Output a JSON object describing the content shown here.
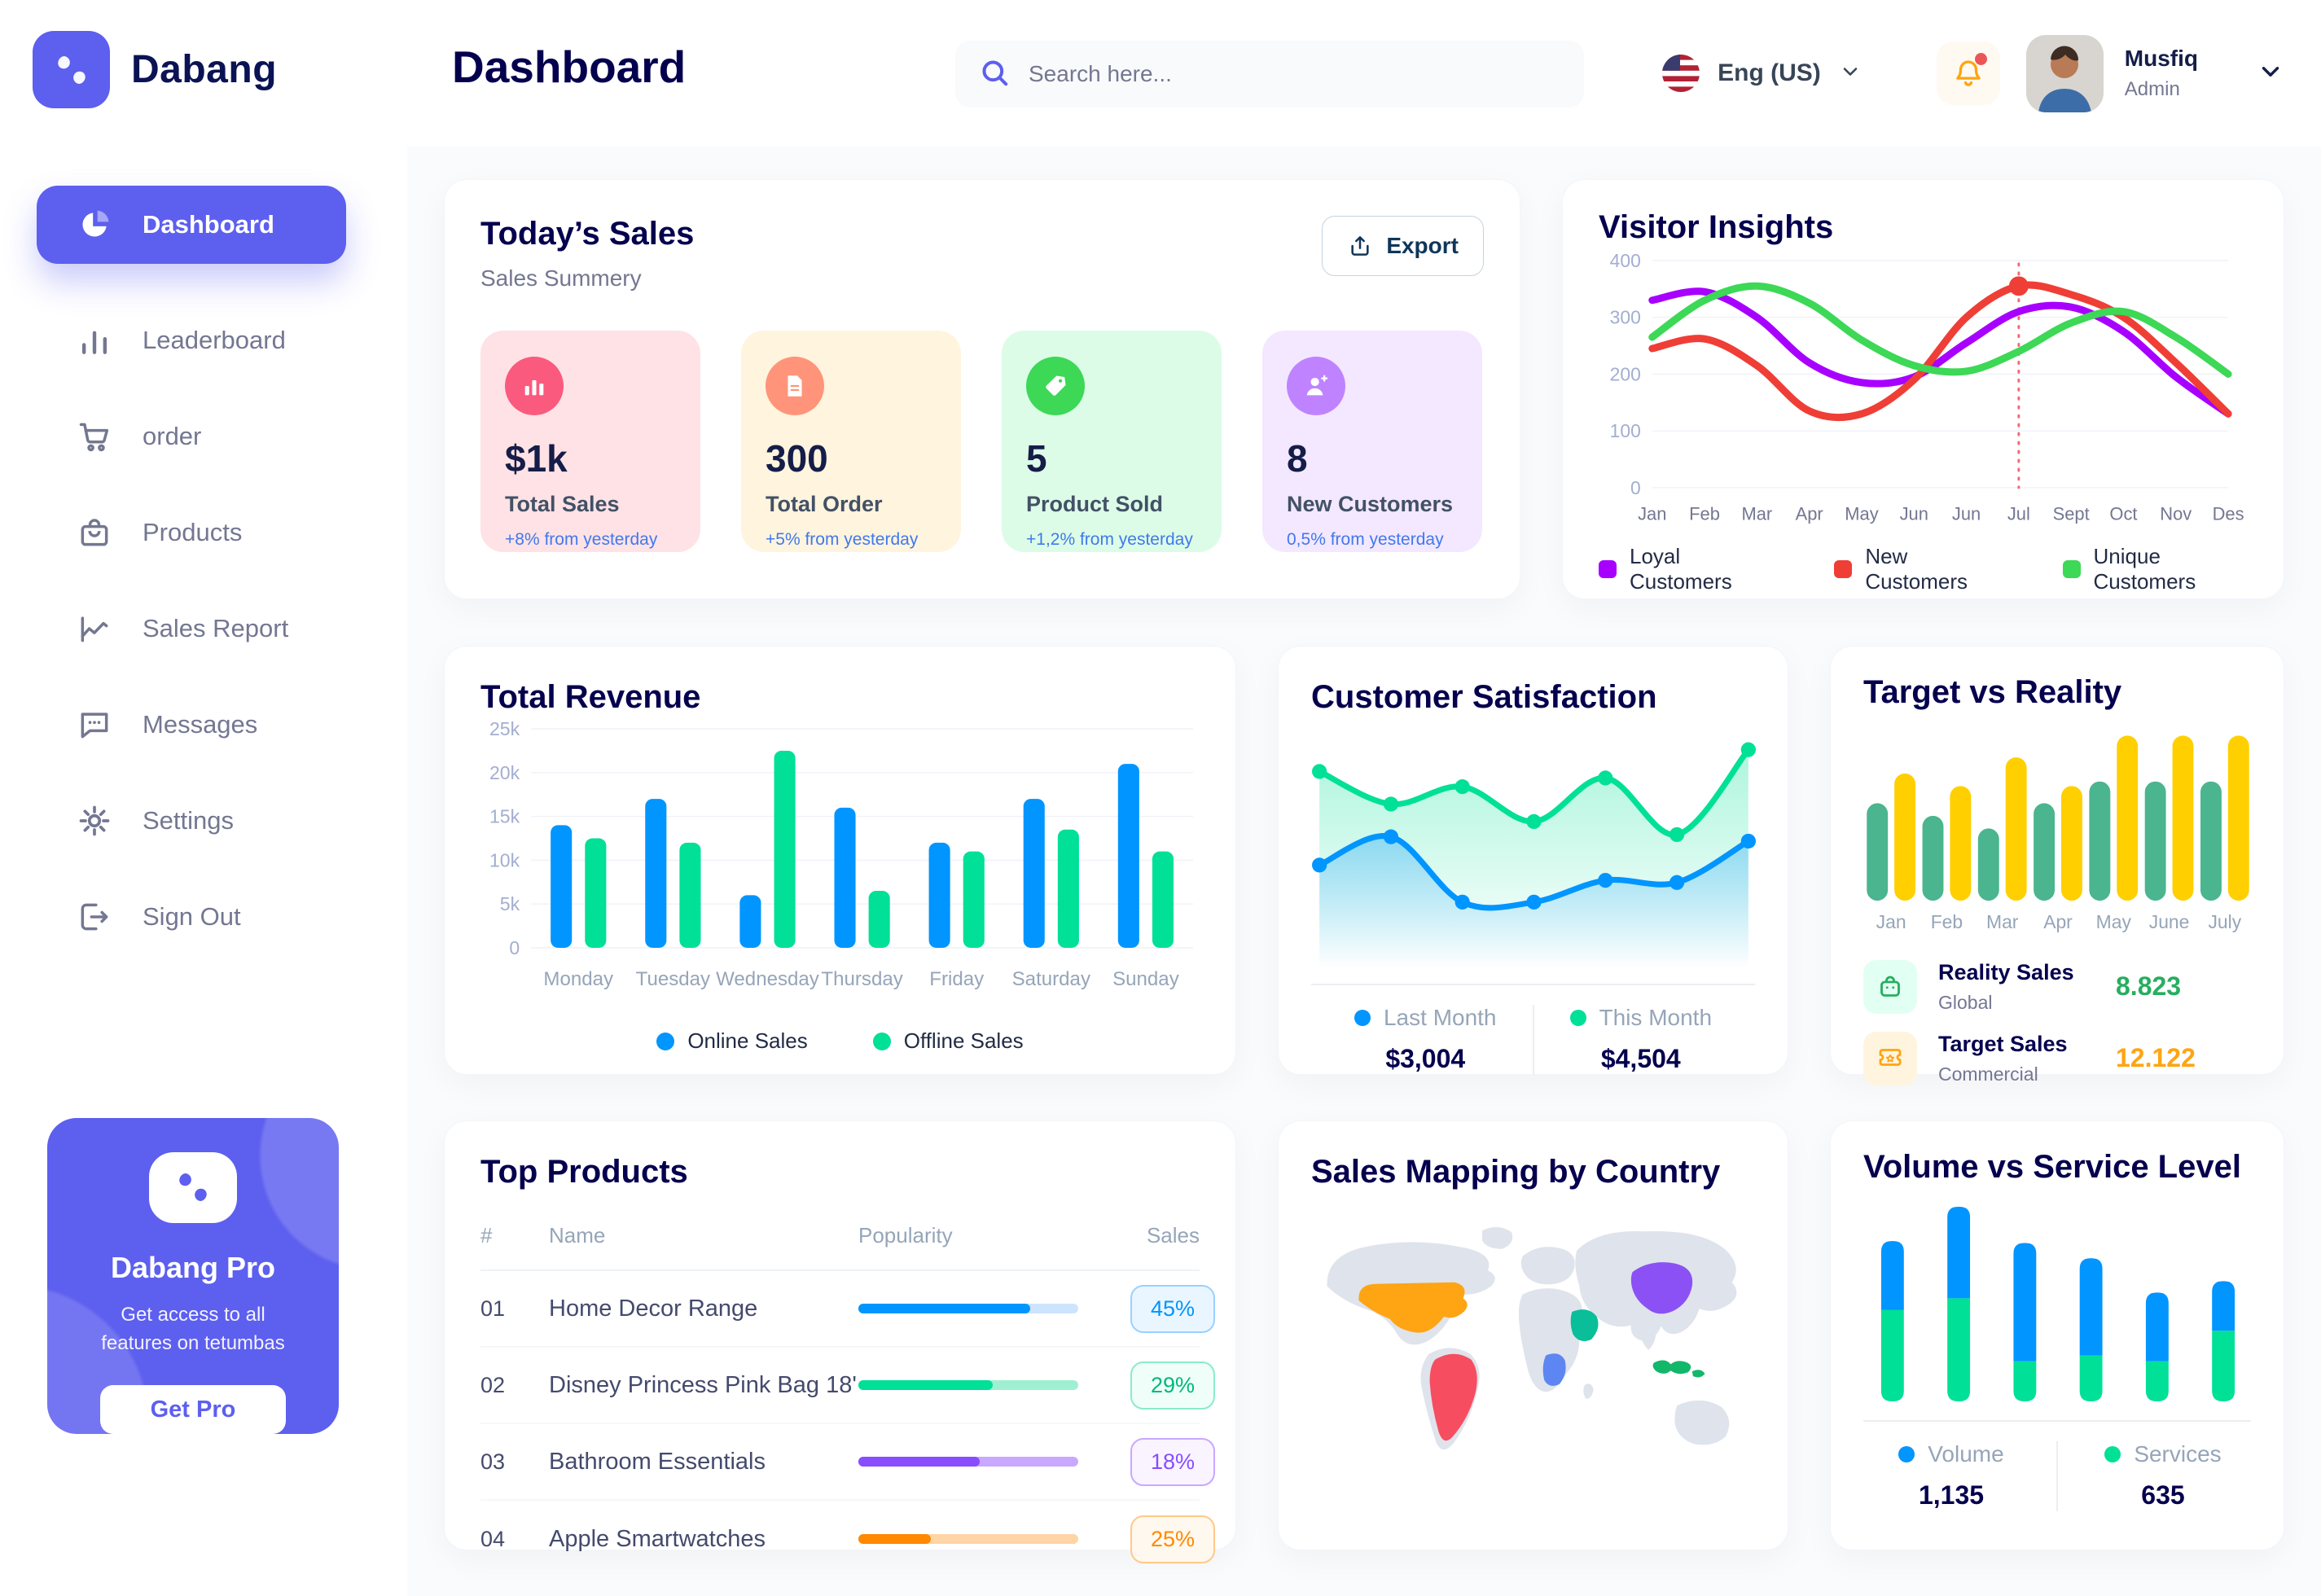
{
  "sidebar": {
    "brand": "Dabang",
    "items": [
      {
        "label": "Dashboard",
        "icon": "pie-chart"
      },
      {
        "label": "Leaderboard",
        "icon": "bar-chart"
      },
      {
        "label": "order",
        "icon": "cart"
      },
      {
        "label": "Products",
        "icon": "bag"
      },
      {
        "label": "Sales Report",
        "icon": "line-chart"
      },
      {
        "label": "Messages",
        "icon": "chat"
      },
      {
        "label": "Settings",
        "icon": "gear"
      },
      {
        "label": "Sign Out",
        "icon": "sign-out"
      }
    ],
    "active_item": "Dashboard",
    "pro": {
      "title": "Dabang Pro",
      "subtitle": "Get access to all features on tetumbas",
      "button": "Get Pro"
    }
  },
  "header": {
    "title": "Dashboard",
    "search_placeholder": "Search here...",
    "language": "Eng (US)",
    "user": {
      "name": "Musfiq",
      "role": "Admin"
    }
  },
  "todays_sales": {
    "title": "Today’s Sales",
    "subtitle": "Sales Summery",
    "export_label": "Export",
    "stats": [
      {
        "value": "$1k",
        "label": "Total Sales",
        "delta": "+8% from yesterday",
        "bg": "#FFE2E5",
        "accent": "#FA5A7D",
        "icon": "chart"
      },
      {
        "value": "300",
        "label": "Total Order",
        "delta": "+5% from yesterday",
        "bg": "#FFF4DE",
        "accent": "#FF947A",
        "icon": "file"
      },
      {
        "value": "5",
        "label": "Product Sold",
        "delta": "+1,2% from yesterday",
        "bg": "#DCFCE7",
        "accent": "#3CD856",
        "icon": "tag"
      },
      {
        "value": "8",
        "label": "New Customers",
        "delta": "0,5% from yesterday",
        "bg": "#F3E8FF",
        "accent": "#BF83FF",
        "icon": "user-plus"
      }
    ]
  },
  "chart_data": [
    {
      "id": "visitor_insights",
      "type": "line",
      "title": "Visitor Insights",
      "x": [
        "Jan",
        "Feb",
        "Mar",
        "Apr",
        "May",
        "Jun",
        "Jun",
        "Jul",
        "Sept",
        "Oct",
        "Nov",
        "Des"
      ],
      "ylim": [
        0,
        400
      ],
      "yticks": [
        0,
        100,
        200,
        300,
        400
      ],
      "grid": true,
      "legend_position": "bottom",
      "series": [
        {
          "name": "Loyal Customers",
          "color": "#A700FF",
          "values": [
            330,
            345,
            300,
            220,
            185,
            195,
            255,
            310,
            318,
            275,
            195,
            130
          ]
        },
        {
          "name": "New Customers",
          "color": "#EF3E36",
          "values": [
            245,
            262,
            215,
            135,
            130,
            190,
            300,
            355,
            340,
            300,
            220,
            130
          ]
        },
        {
          "name": "Unique Customers",
          "color": "#3CD856",
          "values": [
            265,
            330,
            355,
            325,
            260,
            215,
            205,
            240,
            290,
            310,
            265,
            200
          ]
        }
      ],
      "marker": {
        "series": "New Customers",
        "x_index": 7
      }
    },
    {
      "id": "total_revenue",
      "type": "bar",
      "title": "Total Revenue",
      "categories": [
        "Monday",
        "Tuesday",
        "Wednesday",
        "Thursday",
        "Friday",
        "Saturday",
        "Sunday"
      ],
      "ylim": [
        0,
        25000
      ],
      "grid": true,
      "legend_position": "bottom",
      "yticks": [
        {
          "v": 0,
          "label": "0"
        },
        {
          "v": 5000,
          "label": "5k"
        },
        {
          "v": 10000,
          "label": "10k"
        },
        {
          "v": 15000,
          "label": "15k"
        },
        {
          "v": 20000,
          "label": "20k"
        },
        {
          "v": 25000,
          "label": "25k"
        }
      ],
      "series": [
        {
          "name": "Online Sales",
          "color": "#0095FF",
          "values": [
            14000,
            17000,
            6000,
            16000,
            12000,
            17000,
            21000
          ]
        },
        {
          "name": "Offline Sales",
          "color": "#00E096",
          "values": [
            12500,
            12000,
            22500,
            6500,
            11000,
            13500,
            11000
          ]
        }
      ]
    },
    {
      "id": "customer_satisfaction",
      "type": "area",
      "title": "Customer Satisfaction",
      "ylim": [
        0,
        100
      ],
      "grid": false,
      "legend_position": "bottom",
      "series": [
        {
          "name": "Last Month",
          "color": "#0095FF",
          "total": "$3,004",
          "values": [
            42,
            55,
            25,
            25,
            35,
            34,
            53
          ]
        },
        {
          "name": "This Month",
          "color": "#00E096",
          "total": "$4,504",
          "values": [
            85,
            70,
            78,
            62,
            82,
            56,
            95
          ]
        }
      ]
    },
    {
      "id": "target_vs_reality",
      "type": "bar",
      "title": "Target vs Reality",
      "categories": [
        "Jan",
        "Feb",
        "Mar",
        "Apr",
        "May",
        "June",
        "July"
      ],
      "ylim": [
        0,
        15
      ],
      "grid": false,
      "legend_position": "bottom",
      "series": [
        {
          "name": "Reality Sales",
          "color": "#4AB58E",
          "values": [
            8.5,
            7.4,
            6.3,
            8.5,
            10.4,
            10.4,
            10.4
          ]
        },
        {
          "name": "Target Sales",
          "color": "#FFCF00",
          "values": [
            11.1,
            10.0,
            12.5,
            10.0,
            14.4,
            14.4,
            14.4
          ]
        }
      ],
      "legend": [
        {
          "name": "Reality Sales",
          "subtitle": "Global",
          "value": "8.823",
          "value_color": "#27AE60",
          "icon_bg": "#E2FFF3",
          "icon": "bag"
        },
        {
          "name": "Target Sales",
          "subtitle": "Commercial",
          "value": "12.122",
          "value_color": "#FFA412",
          "icon_bg": "#FFF4DE",
          "icon": "ticket"
        }
      ]
    },
    {
      "id": "volume_service",
      "type": "stacked_bar",
      "title": "Volume vs Service Level",
      "grid": false,
      "legend_position": "bottom",
      "series": [
        {
          "name": "Volume",
          "color": "#0095FF",
          "total": "1,135",
          "values": [
            36,
            48,
            62,
            51,
            36,
            26
          ]
        },
        {
          "name": "Services",
          "color": "#00E096",
          "total": "635",
          "values": [
            48,
            54,
            21,
            24,
            21,
            37
          ]
        }
      ]
    }
  ],
  "top_products": {
    "title": "Top Products",
    "headers": [
      "#",
      "Name",
      "Popularity",
      "Sales"
    ],
    "rows": [
      {
        "num": "01",
        "name": "Home Decor Range",
        "popularity_pct": 78,
        "sales": "45%",
        "bar": "#0095FF",
        "track": "#CDE4FF",
        "badge_text": "#0095FF",
        "badge_bg": "#EAF6FF",
        "badge_border": "#9AD1FF"
      },
      {
        "num": "02",
        "name": "Disney Princess Pink Bag 18'",
        "popularity_pct": 61,
        "sales": "29%",
        "bar": "#00E096",
        "track": "#9FF0D2",
        "badge_text": "#00B87C",
        "badge_bg": "#EFFEF8",
        "badge_border": "#8BEBC9"
      },
      {
        "num": "03",
        "name": "Bathroom Essentials",
        "popularity_pct": 55,
        "sales": "18%",
        "bar": "#884DFF",
        "track": "#C9A8FF",
        "badge_text": "#884DFF",
        "badge_bg": "#F9F4FF",
        "badge_border": "#C9A8FF"
      },
      {
        "num": "04",
        "name": "Apple Smartwatches",
        "popularity_pct": 33,
        "sales": "25%",
        "bar": "#FF8900",
        "track": "#FFD5A5",
        "badge_text": "#FF8900",
        "badge_bg": "#FFF8EE",
        "badge_border": "#FFC989"
      }
    ]
  },
  "sales_map": {
    "title": "Sales Mapping by Country",
    "land_color": "#DFE3EC",
    "regions": [
      {
        "id": "usa",
        "name": "United States",
        "color": "#FFA412"
      },
      {
        "id": "brazil",
        "name": "Brazil",
        "color": "#F64E60"
      },
      {
        "id": "saudi",
        "name": "Saudi Arabia",
        "color": "#0BBE9A"
      },
      {
        "id": "drc",
        "name": "DR Congo",
        "color": "#5E86F2"
      },
      {
        "id": "china",
        "name": "China",
        "color": "#8B51F5"
      },
      {
        "id": "indonesia",
        "name": "Indonesia",
        "color": "#12B76A"
      }
    ]
  }
}
